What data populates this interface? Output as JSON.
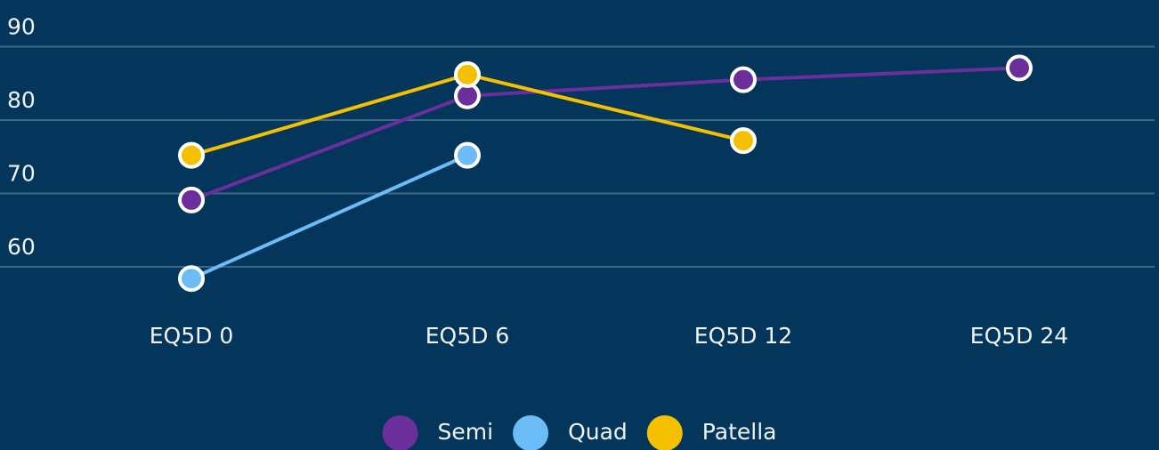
{
  "chart_data": {
    "type": "line",
    "categories": [
      "EQ5D 0",
      "EQ5D 6",
      "EQ5D 12",
      "EQ5D 24"
    ],
    "series": [
      {
        "name": "Semi",
        "color": "#6a2f9a",
        "values": [
          69.1,
          83.3,
          85.5,
          87.1
        ]
      },
      {
        "name": "Quad",
        "color": "#6bbcf7",
        "values": [
          58.4,
          75.2,
          null,
          null
        ]
      },
      {
        "name": "Patella",
        "color": "#f5c000",
        "values": [
          75.2,
          86.2,
          77.2,
          null
        ]
      }
    ],
    "ylim": [
      56,
      92
    ],
    "yticks": [
      60,
      70,
      80,
      90
    ],
    "grid": true,
    "legend": "bottom"
  }
}
